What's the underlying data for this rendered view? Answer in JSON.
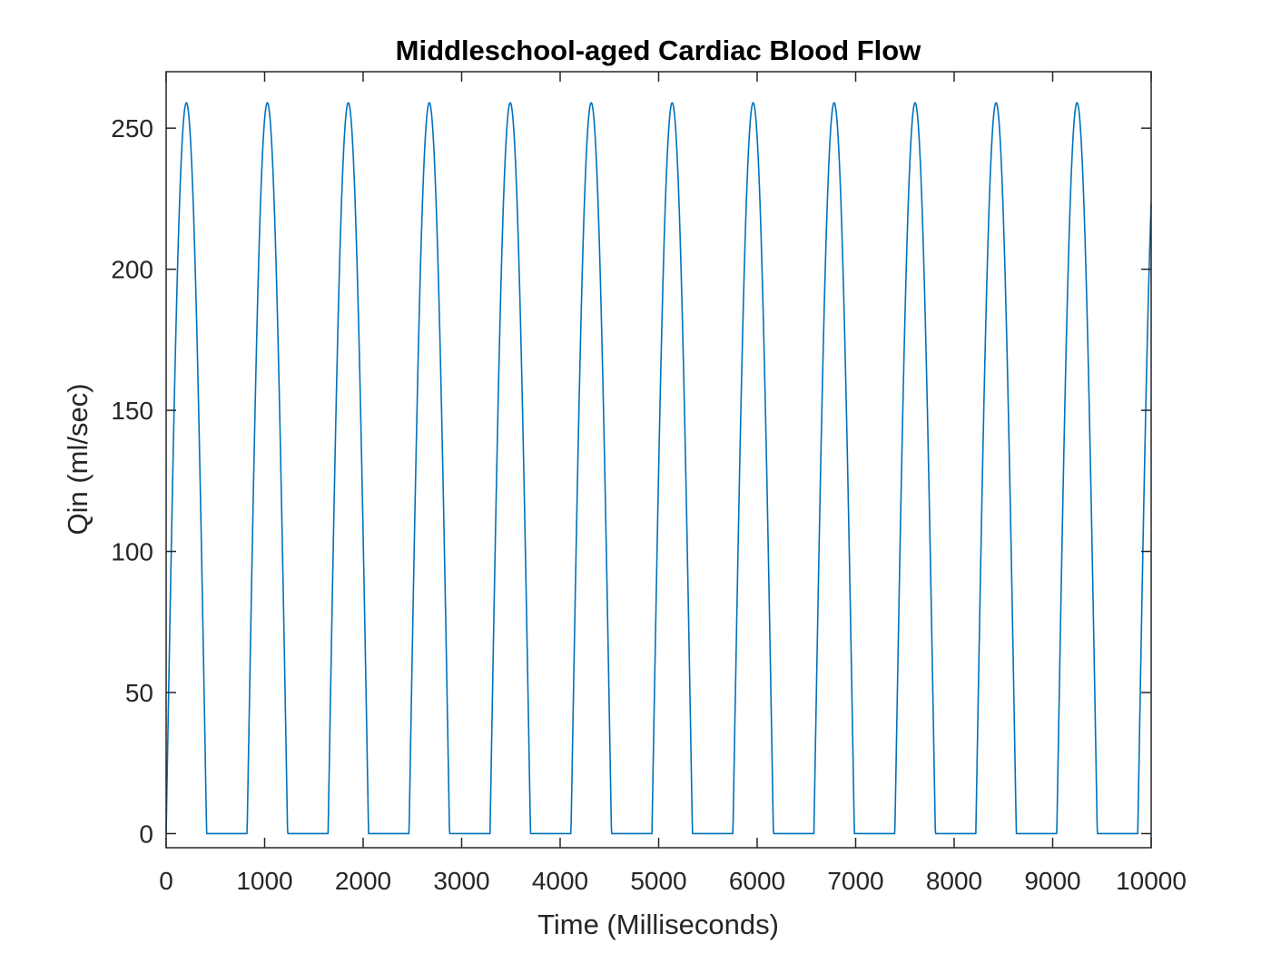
{
  "chart_data": {
    "type": "line",
    "title": "Middleschool-aged Cardiac Blood Flow",
    "xlabel": "Time (Milliseconds)",
    "ylabel": "Qin (ml/sec)",
    "xlim": [
      0,
      10000
    ],
    "ylim": [
      -5,
      270
    ],
    "xticks": [
      0,
      1000,
      2000,
      3000,
      4000,
      5000,
      6000,
      7000,
      8000,
      9000,
      10000
    ],
    "xtick_labels": [
      "0",
      "1000",
      "2000",
      "3000",
      "4000",
      "5000",
      "6000",
      "7000",
      "8000",
      "9000",
      "10000"
    ],
    "yticks": [
      0,
      50,
      100,
      150,
      200,
      250
    ],
    "ytick_labels": [
      "0",
      "50",
      "100",
      "150",
      "200",
      "250"
    ],
    "grid": false,
    "legend": "none",
    "series": [
      {
        "color": "#0072BD",
        "period_ms": 822,
        "systole_ms": 411,
        "peak": 259,
        "x": [
          0,
          0,
          205,
          411,
          822,
          822,
          1027,
          1233,
          1644,
          1644,
          1849,
          2055,
          2466,
          2466,
          2671,
          2877,
          3288,
          3288,
          3493,
          3699,
          4110,
          4110,
          4315,
          4521,
          4932,
          4932,
          5137,
          5343,
          5754,
          5754,
          5959,
          6165,
          6576,
          6576,
          6781,
          6987,
          7398,
          7398,
          7603,
          7809,
          8220,
          8220,
          8425,
          8631,
          9042,
          9042,
          9247,
          9453,
          9864,
          9864,
          10000
        ],
        "y": [
          0,
          0,
          259,
          0,
          0,
          0,
          259,
          0,
          0,
          0,
          259,
          0,
          0,
          0,
          259,
          0,
          0,
          0,
          259,
          0,
          0,
          0,
          259,
          0,
          0,
          0,
          259,
          0,
          0,
          0,
          259,
          0,
          0,
          0,
          259,
          0,
          0,
          0,
          259,
          0,
          0,
          0,
          259,
          0,
          0,
          0,
          259,
          0,
          0,
          0,
          224
        ]
      }
    ]
  }
}
